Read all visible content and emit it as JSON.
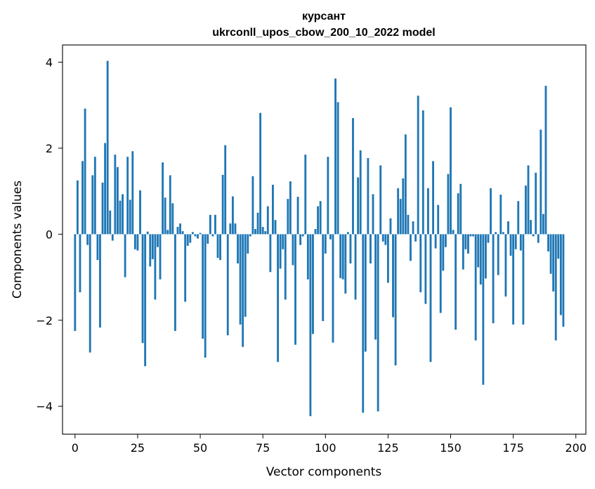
{
  "chart_data": {
    "type": "bar",
    "title": "курсант",
    "subtitle": "ukrconll_upos_cbow_200_10_2022 model",
    "xlabel": "Vector components",
    "ylabel": "Components values",
    "xlim": [
      -5,
      204
    ],
    "ylim": [
      -4.65,
      4.4
    ],
    "xticks": [
      0,
      25,
      50,
      75,
      100,
      125,
      150,
      175,
      200
    ],
    "yticks": [
      -4,
      -2,
      0,
      2,
      4
    ],
    "bar_color": "#1f77b4",
    "values": [
      -2.25,
      1.25,
      -1.35,
      1.7,
      2.92,
      -0.25,
      -2.75,
      1.37,
      1.8,
      -0.6,
      -2.17,
      1.2,
      2.12,
      4.03,
      0.55,
      -0.15,
      1.85,
      1.56,
      0.78,
      0.93,
      -1.0,
      1.8,
      0.8,
      1.93,
      -0.35,
      -0.38,
      1.02,
      -2.53,
      -3.07,
      0.06,
      -0.75,
      -0.58,
      -1.52,
      -0.3,
      -1.05,
      1.67,
      0.85,
      0.1,
      1.37,
      0.72,
      -2.25,
      0.17,
      0.25,
      0.07,
      -1.57,
      -0.27,
      -0.2,
      0.05,
      -0.05,
      -0.1,
      0.03,
      -2.43,
      -2.87,
      -0.22,
      0.45,
      -0.05,
      0.45,
      -0.55,
      -0.6,
      1.38,
      2.07,
      -2.35,
      0.25,
      0.88,
      0.25,
      -0.68,
      -2.1,
      -2.62,
      -1.92,
      -0.45,
      -0.05,
      1.35,
      0.12,
      0.5,
      2.82,
      0.17,
      0.07,
      0.65,
      -0.88,
      1.15,
      0.33,
      -2.97,
      -0.8,
      -0.35,
      -1.52,
      0.82,
      1.23,
      -0.72,
      -2.57,
      0.87,
      -0.25,
      -0.05,
      1.85,
      -1.05,
      -4.23,
      -2.32,
      0.12,
      0.65,
      0.77,
      -2.02,
      -0.45,
      1.8,
      -0.12,
      -2.52,
      3.62,
      3.07,
      -1.02,
      -1.05,
      -1.38,
      0.05,
      -0.68,
      2.7,
      -1.52,
      1.32,
      1.95,
      -4.15,
      -2.73,
      1.77,
      -0.68,
      0.93,
      -2.45,
      -4.12,
      1.6,
      -0.17,
      -0.25,
      -1.13,
      0.37,
      -1.93,
      -3.05,
      1.07,
      0.82,
      1.3,
      2.32,
      0.45,
      -0.62,
      0.3,
      -0.17,
      3.22,
      -1.35,
      2.88,
      -1.62,
      1.07,
      -2.97,
      1.7,
      -0.33,
      0.68,
      -1.83,
      -0.85,
      -0.3,
      1.4,
      2.95,
      0.1,
      -2.22,
      0.95,
      1.17,
      -0.82,
      -0.35,
      -0.45,
      -0.05,
      -0.05,
      -2.47,
      -0.77,
      -1.17,
      -3.5,
      -1.03,
      -0.2,
      1.07,
      -2.07,
      0.05,
      -0.95,
      0.92,
      0.05,
      -1.45,
      0.3,
      -0.5,
      -2.1,
      -0.35,
      0.77,
      -0.38,
      -2.1,
      1.13,
      1.6,
      0.33,
      -0.05,
      1.43,
      -0.2,
      2.43,
      0.47,
      3.45,
      -0.4,
      -0.92,
      -1.33,
      -2.47,
      -0.57,
      -1.88,
      -2.15
    ]
  }
}
